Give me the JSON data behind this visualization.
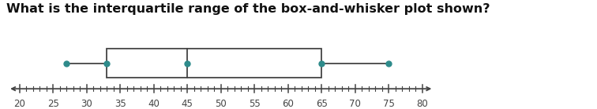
{
  "title": "What is the interquartile range of the box-and-whisker plot shown?",
  "title_fontsize": 11.5,
  "title_fontweight": "bold",
  "xmin": 20,
  "xmax": 80,
  "whisker_min": 27,
  "q1": 33,
  "median": 45,
  "q3": 65,
  "whisker_max": 75,
  "box_color": "white",
  "box_edgecolor": "#444444",
  "dot_color": "#2e8b8b",
  "dot_size": 5,
  "line_color": "#444444",
  "axis_label_fontsize": 8.5,
  "tick_labels": [
    20,
    25,
    30,
    35,
    40,
    45,
    50,
    55,
    60,
    65,
    70,
    75,
    80
  ],
  "background_color": "#ffffff"
}
